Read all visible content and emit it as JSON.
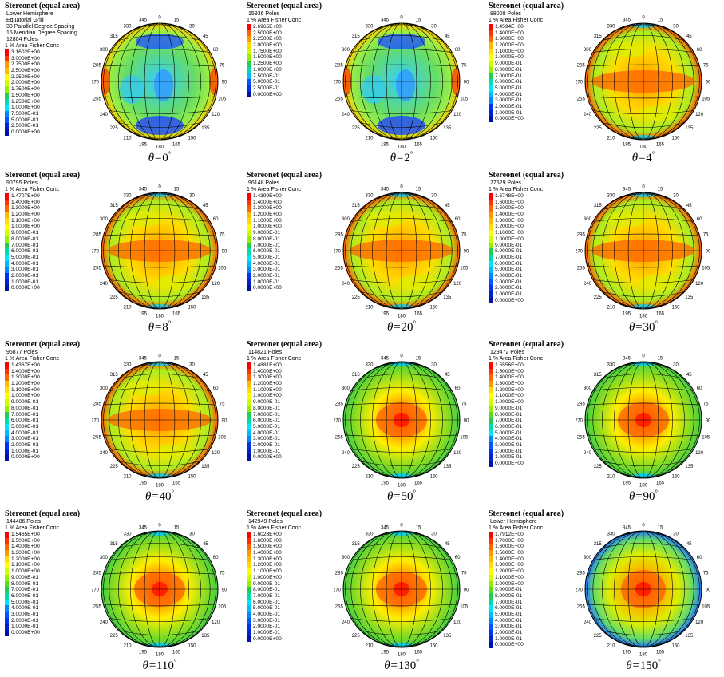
{
  "figure": {
    "panels": [
      {
        "title": "Stereonet (equal area)",
        "header": [
          "Lower Hemisphere",
          "Equatorial Grid",
          "30 Parallel Degree Spacing",
          "15 Meridian Degree Spacing"
        ],
        "poles": "12804 Poles",
        "legend_title": "1 % Area Fisher Conc",
        "legend": [
          "3.1602E+00",
          "3.0000E+00",
          "2.7500E+00",
          "2.5000E+00",
          "2.2500E+00",
          "2.0000E+00",
          "1.7500E+00",
          "1.5000E+00",
          "1.2500E+00",
          "1.0000E+00",
          "7.5000E-01",
          "5.0000E-01",
          "2.5000E-01",
          "0.0000E+00"
        ],
        "theta": "0",
        "pattern": "low"
      },
      {
        "title": "Stereonet (equal area)",
        "header": [],
        "poles": "15936 Poles",
        "legend_title": "1 % Area Fisher Conc",
        "legend": [
          "2.6965E+00",
          "2.5000E+00",
          "2.2500E+00",
          "2.0000E+00",
          "1.7500E+00",
          "1.5000E+00",
          "1.2500E+00",
          "1.0000E+00",
          "7.5000E-01",
          "5.0000E-01",
          "2.5000E-01",
          "0.0000E+00"
        ],
        "theta": "2",
        "pattern": "low"
      },
      {
        "title": "Stereonet (equal area)",
        "header": [],
        "poles": "88008 Poles",
        "legend_title": "1 % Area Fisher Conc",
        "legend": [
          "1.4594E+00",
          "1.4000E+00",
          "1.3000E+00",
          "1.2000E+00",
          "1.1000E+00",
          "1.0000E+00",
          "9.0000E-01",
          "8.0000E-01",
          "7.0000E-01",
          "6.0000E-01",
          "5.0000E-01",
          "4.0000E-01",
          "3.0000E-01",
          "2.0000E-01",
          "1.0000E-01",
          "0.0000E+00"
        ],
        "theta": "4",
        "pattern": "band"
      },
      {
        "title": "Stereonet (equal area)",
        "header": [],
        "poles": "90795 Poles",
        "legend_title": "1 % Area Fisher Conc",
        "legend": [
          "1.4707E+00",
          "1.4000E+00",
          "1.3000E+00",
          "1.2000E+00",
          "1.1000E+00",
          "1.0000E+00",
          "9.0000E-01",
          "8.0000E-01",
          "7.0000E-01",
          "6.0000E-01",
          "5.0000E-01",
          "4.0000E-01",
          "3.0000E-01",
          "2.0000E-01",
          "1.0000E-01",
          "0.0000E+00"
        ],
        "theta": "8",
        "pattern": "band"
      },
      {
        "title": "Stereonet (equal area)",
        "header": [],
        "poles": "96148 Poles",
        "legend_title": "1 % Area Fisher Conc",
        "legend": [
          "1.4399E+00",
          "1.4000E+00",
          "1.3000E+00",
          "1.2000E+00",
          "1.1000E+00",
          "1.0000E+00",
          "9.0000E-01",
          "8.0000E-01",
          "7.0000E-01",
          "6.0000E-01",
          "5.0000E-01",
          "4.0000E-01",
          "3.0000E-01",
          "2.0000E-01",
          "1.0000E-01",
          "0.0000E+00"
        ],
        "theta": "20",
        "pattern": "band"
      },
      {
        "title": "Stereonet (equal area)",
        "header": [],
        "poles": "77529 Poles",
        "legend_title": "1 % Area Fisher Conc",
        "legend": [
          "1.6748E+00",
          "1.6000E+00",
          "1.5000E+00",
          "1.4000E+00",
          "1.3000E+00",
          "1.2000E+00",
          "1.1000E+00",
          "1.0000E+00",
          "9.0000E-01",
          "8.0000E-01",
          "7.0000E-01",
          "6.0000E-01",
          "5.0000E-01",
          "4.0000E-01",
          "3.0000E-01",
          "2.0000E-01",
          "1.0000E-01",
          "0.0000E+00"
        ],
        "theta": "30",
        "pattern": "band"
      },
      {
        "title": "Stereonet (equal area)",
        "header": [],
        "poles": "96877 Poles",
        "legend_title": "1 % Area Fisher Conc",
        "legend": [
          "1.4367E+00",
          "1.4000E+00",
          "1.3000E+00",
          "1.2000E+00",
          "1.1000E+00",
          "1.0000E+00",
          "9.0000E-01",
          "8.0000E-01",
          "7.0000E-01",
          "6.0000E-01",
          "5.0000E-01",
          "4.0000E-01",
          "3.0000E-01",
          "2.0000E-01",
          "1.0000E-01",
          "0.0000E+00"
        ],
        "theta": "40",
        "pattern": "band"
      },
      {
        "title": "Stereonet (equal area)",
        "header": [],
        "poles": "114821 Poles",
        "legend_title": "1 % Area Fisher Conc",
        "legend": [
          "1.4881E+00",
          "1.4000E+00",
          "1.3000E+00",
          "1.2000E+00",
          "1.1000E+00",
          "1.0000E+00",
          "9.0000E-01",
          "8.0000E-01",
          "7.0000E-01",
          "6.0000E-01",
          "5.0000E-01",
          "4.0000E-01",
          "3.0000E-01",
          "2.0000E-01",
          "1.0000E-01",
          "0.0000E+00"
        ],
        "theta": "50",
        "pattern": "center"
      },
      {
        "title": "Stereonet (equal area)",
        "header": [],
        "poles": "129472 Poles",
        "legend_title": "1 % Area Fisher Conc",
        "legend": [
          "1.5556E+00",
          "1.5000E+00",
          "1.4000E+00",
          "1.3000E+00",
          "1.2000E+00",
          "1.1000E+00",
          "1.0000E+00",
          "9.0000E-01",
          "8.0000E-01",
          "7.0000E-01",
          "6.0000E-01",
          "5.0000E-01",
          "4.0000E-01",
          "3.0000E-01",
          "2.0000E-01",
          "1.0000E-01",
          "0.0000E+00"
        ],
        "theta": "90",
        "pattern": "center"
      },
      {
        "title": "Stereonet (equal area)",
        "header": [],
        "poles": "144486 Poles",
        "legend_title": "1 % Area Fisher Conc",
        "legend": [
          "1.5465E+00",
          "1.5000E+00",
          "1.4000E+00",
          "1.3000E+00",
          "1.2000E+00",
          "1.1000E+00",
          "1.0000E+00",
          "9.0000E-01",
          "8.0000E-01",
          "7.0000E-01",
          "6.0000E-01",
          "5.0000E-01",
          "4.0000E-01",
          "3.0000E-01",
          "2.0000E-01",
          "1.0000E-01",
          "0.0000E+00"
        ],
        "theta": "110",
        "pattern": "center"
      },
      {
        "title": "Stereonet (equal area)",
        "header": [],
        "poles": "142949 Poles",
        "legend_title": "1 % Area Fisher Conc",
        "legend": [
          "1.6028E+00",
          "1.6000E+00",
          "1.5000E+00",
          "1.4000E+00",
          "1.3000E+00",
          "1.2000E+00",
          "1.1000E+00",
          "1.0000E+00",
          "9.0000E-01",
          "8.0000E-01",
          "7.0000E-01",
          "6.0000E-01",
          "5.0000E-01",
          "4.0000E-01",
          "3.0000E-01",
          "2.0000E-01",
          "1.0000E-01",
          "0.0000E+00"
        ],
        "theta": "130",
        "pattern": "center"
      },
      {
        "title": "Stereonet (equal area)",
        "header": [
          "Lower Hemisphere"
        ],
        "poles": "",
        "legend_title": "1 % Area Fisher Conc",
        "legend": [
          "1.7912E+00",
          "1.7000E+00",
          "1.6000E+00",
          "1.5000E+00",
          "1.4000E+00",
          "1.3000E+00",
          "1.2000E+00",
          "1.1000E+00",
          "1.0000E+00",
          "9.0000E-01",
          "8.0000E-01",
          "7.0000E-01",
          "6.0000E-01",
          "5.0000E-01",
          "4.0000E-01",
          "3.0000E-01",
          "2.0000E-01",
          "1.0000E-01",
          "0.0000E+00"
        ],
        "theta": "150",
        "pattern": "ring"
      }
    ],
    "azimuth_labels": [
      "0",
      "15",
      "30",
      "45",
      "60",
      "75",
      "90",
      "105",
      "120",
      "135",
      "150",
      "165",
      "180",
      "195",
      "210",
      "225",
      "240",
      "255",
      "270",
      "285",
      "300",
      "315",
      "330",
      "345"
    ],
    "theta_symbol": "θ=",
    "degree_symbol": "°",
    "colors": {
      "red": "#ff0000",
      "orange": "#ff8c00",
      "yellow": "#ffff00",
      "green": "#33cc33",
      "cyan": "#00e5ff",
      "blue": "#0033ff",
      "grid": "#000000"
    }
  }
}
